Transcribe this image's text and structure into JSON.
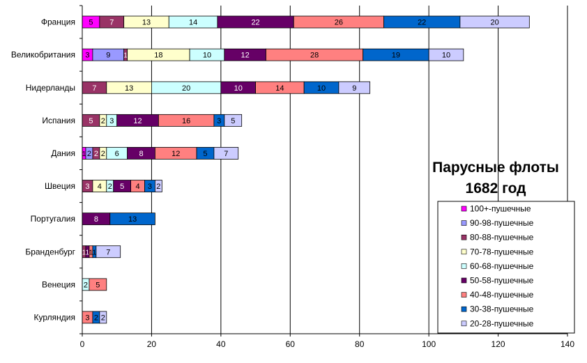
{
  "chart_data": {
    "type": "bar",
    "orientation": "horizontal",
    "stacked": true,
    "title": "Парусные флоты",
    "subtitle": "1682 год",
    "xlabel": "",
    "ylabel": "",
    "xlim": [
      0,
      140
    ],
    "x_ticks": [
      "0",
      "20",
      "40",
      "60",
      "80",
      "100",
      "120",
      "140"
    ],
    "grid": true,
    "legend_position": "right",
    "categories": [
      "Франция",
      "Великобритания",
      "Нидерланды",
      "Испания",
      "Дания",
      "Швеция",
      "Португалия",
      "Бранденбург",
      "Венеция",
      "Курляндия"
    ],
    "series": [
      {
        "name": "100+-пушечные",
        "color": "#ff00ff",
        "values": [
          5,
          3,
          0,
          0,
          1,
          0,
          0,
          0,
          0,
          0
        ],
        "labels": [
          "5",
          "3",
          "",
          "",
          "1",
          "",
          "",
          "",
          "",
          ""
        ]
      },
      {
        "name": "90-98-пушечные",
        "color": "#9999ff",
        "values": [
          0,
          9,
          0,
          0,
          2,
          0,
          0,
          0,
          0,
          0
        ],
        "labels": [
          "",
          "9",
          "",
          "",
          "2",
          "",
          "",
          "",
          "",
          ""
        ]
      },
      {
        "name": "80-88-пушечные",
        "color": "#993366",
        "values": [
          7,
          1,
          7,
          5,
          2,
          3,
          0,
          1,
          0,
          0
        ],
        "labels": [
          "7",
          "1",
          "7",
          "5",
          "2",
          "3",
          "",
          "1",
          "",
          ""
        ]
      },
      {
        "name": "70-78-пушечные",
        "color": "#ffffcc",
        "values": [
          13,
          18,
          13,
          2,
          2,
          4,
          0,
          0,
          0,
          0
        ],
        "labels": [
          "13",
          "18",
          "13",
          "2",
          "2",
          "4",
          "",
          "",
          "",
          ""
        ]
      },
      {
        "name": "60-68-пушечные",
        "color": "#ccffff",
        "values": [
          14,
          10,
          20,
          3,
          6,
          2,
          0,
          0,
          2,
          0
        ],
        "labels": [
          "14",
          "10",
          "20",
          "3",
          "6",
          "2",
          "",
          "",
          "2",
          ""
        ]
      },
      {
        "name": "50-58-пушечные",
        "color": "#660066",
        "values": [
          22,
          12,
          10,
          12,
          8,
          5,
          8,
          1,
          0,
          0
        ],
        "labels": [
          "22",
          "12",
          "10",
          "12",
          "8",
          "5",
          "8",
          "1",
          "",
          ""
        ]
      },
      {
        "name": "40-48-пушечные",
        "color": "#ff8080",
        "values": [
          26,
          28,
          14,
          16,
          12,
          4,
          0,
          1,
          5,
          3
        ],
        "labels": [
          "26",
          "28",
          "14",
          "16",
          "12",
          "4",
          "",
          "1",
          "5",
          "3"
        ]
      },
      {
        "name": "30-38-пушечные",
        "color": "#0066cc",
        "values": [
          22,
          19,
          10,
          3,
          5,
          3,
          13,
          1,
          0,
          2
        ],
        "labels": [
          "22",
          "19",
          "10",
          "3",
          "5",
          "3",
          "13",
          "1",
          "",
          "2"
        ]
      },
      {
        "name": "20-28-пушечные",
        "color": "#ccccff",
        "values": [
          20,
          10,
          9,
          5,
          7,
          2,
          0,
          7,
          0,
          2
        ],
        "labels": [
          "20",
          "10",
          "9",
          "5",
          "7",
          "2",
          "",
          "7",
          "",
          "2"
        ]
      }
    ]
  }
}
